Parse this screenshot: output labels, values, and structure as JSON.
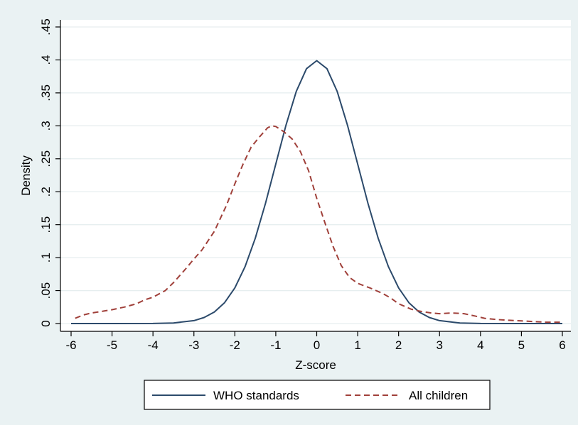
{
  "chart_data": {
    "type": "line",
    "title": "",
    "xlabel": "Z-score",
    "ylabel": "Density",
    "xlim": [
      -6,
      6
    ],
    "ylim": [
      0,
      0.45
    ],
    "x_ticks": [
      -6,
      -5,
      -4,
      -3,
      -2,
      -1,
      0,
      1,
      2,
      3,
      4,
      5,
      6
    ],
    "x_tick_labels": [
      "-6",
      "-5",
      "-4",
      "-3",
      "-2",
      "-1",
      "0",
      "1",
      "2",
      "3",
      "4",
      "5",
      "6"
    ],
    "y_ticks": [
      0,
      0.05,
      0.1,
      0.15,
      0.2,
      0.25,
      0.3,
      0.35,
      0.4,
      0.45
    ],
    "y_tick_labels": [
      "0",
      ".05",
      ".1",
      ".15",
      ".2",
      ".25",
      ".3",
      ".35",
      ".4",
      ".45"
    ],
    "grid": true,
    "legend_position": "bottom",
    "series": [
      {
        "name": "WHO standards",
        "style": "solid",
        "color": "#2c4a6b",
        "x": [
          -6,
          -5,
          -4,
          -3.5,
          -3,
          -2.75,
          -2.5,
          -2.25,
          -2,
          -1.75,
          -1.5,
          -1.25,
          -1,
          -0.75,
          -0.5,
          -0.25,
          0,
          0.25,
          0.5,
          0.75,
          1,
          1.25,
          1.5,
          1.75,
          2,
          2.25,
          2.5,
          2.75,
          3,
          3.5,
          4,
          5,
          6
        ],
        "y": [
          0.0,
          0.0,
          0.0001,
          0.0009,
          0.0044,
          0.0091,
          0.0175,
          0.0317,
          0.054,
          0.0863,
          0.1295,
          0.1826,
          0.242,
          0.3011,
          0.3521,
          0.3867,
          0.3989,
          0.3867,
          0.3521,
          0.3011,
          0.242,
          0.1826,
          0.1295,
          0.0863,
          0.054,
          0.0317,
          0.0175,
          0.0091,
          0.0044,
          0.0009,
          0.0001,
          0.0,
          0.0
        ]
      },
      {
        "name": "All children",
        "style": "dashed",
        "color": "#a0403a",
        "x": [
          -5.9,
          -5.7,
          -5.5,
          -5.2,
          -5,
          -4.7,
          -4.4,
          -4.2,
          -4,
          -3.7,
          -3.5,
          -3.2,
          -3,
          -2.8,
          -2.5,
          -2.2,
          -2,
          -1.8,
          -1.6,
          -1.4,
          -1.2,
          -1.1,
          -1,
          -0.8,
          -0.6,
          -0.4,
          -0.2,
          0,
          0.2,
          0.4,
          0.6,
          0.8,
          1,
          1.3,
          1.6,
          1.8,
          2,
          2.3,
          2.5,
          2.8,
          3,
          3.3,
          3.6,
          3.9,
          4.1,
          4.4,
          4.7,
          5,
          5.3,
          5.6,
          6
        ],
        "y": [
          0.008,
          0.013,
          0.016,
          0.019,
          0.021,
          0.025,
          0.03,
          0.036,
          0.04,
          0.05,
          0.062,
          0.083,
          0.098,
          0.112,
          0.14,
          0.18,
          0.212,
          0.242,
          0.268,
          0.283,
          0.297,
          0.3,
          0.299,
          0.291,
          0.28,
          0.261,
          0.232,
          0.19,
          0.153,
          0.117,
          0.088,
          0.07,
          0.061,
          0.054,
          0.046,
          0.039,
          0.03,
          0.022,
          0.019,
          0.016,
          0.015,
          0.016,
          0.015,
          0.011,
          0.008,
          0.006,
          0.005,
          0.004,
          0.003,
          0.002,
          0.002
        ]
      }
    ]
  }
}
